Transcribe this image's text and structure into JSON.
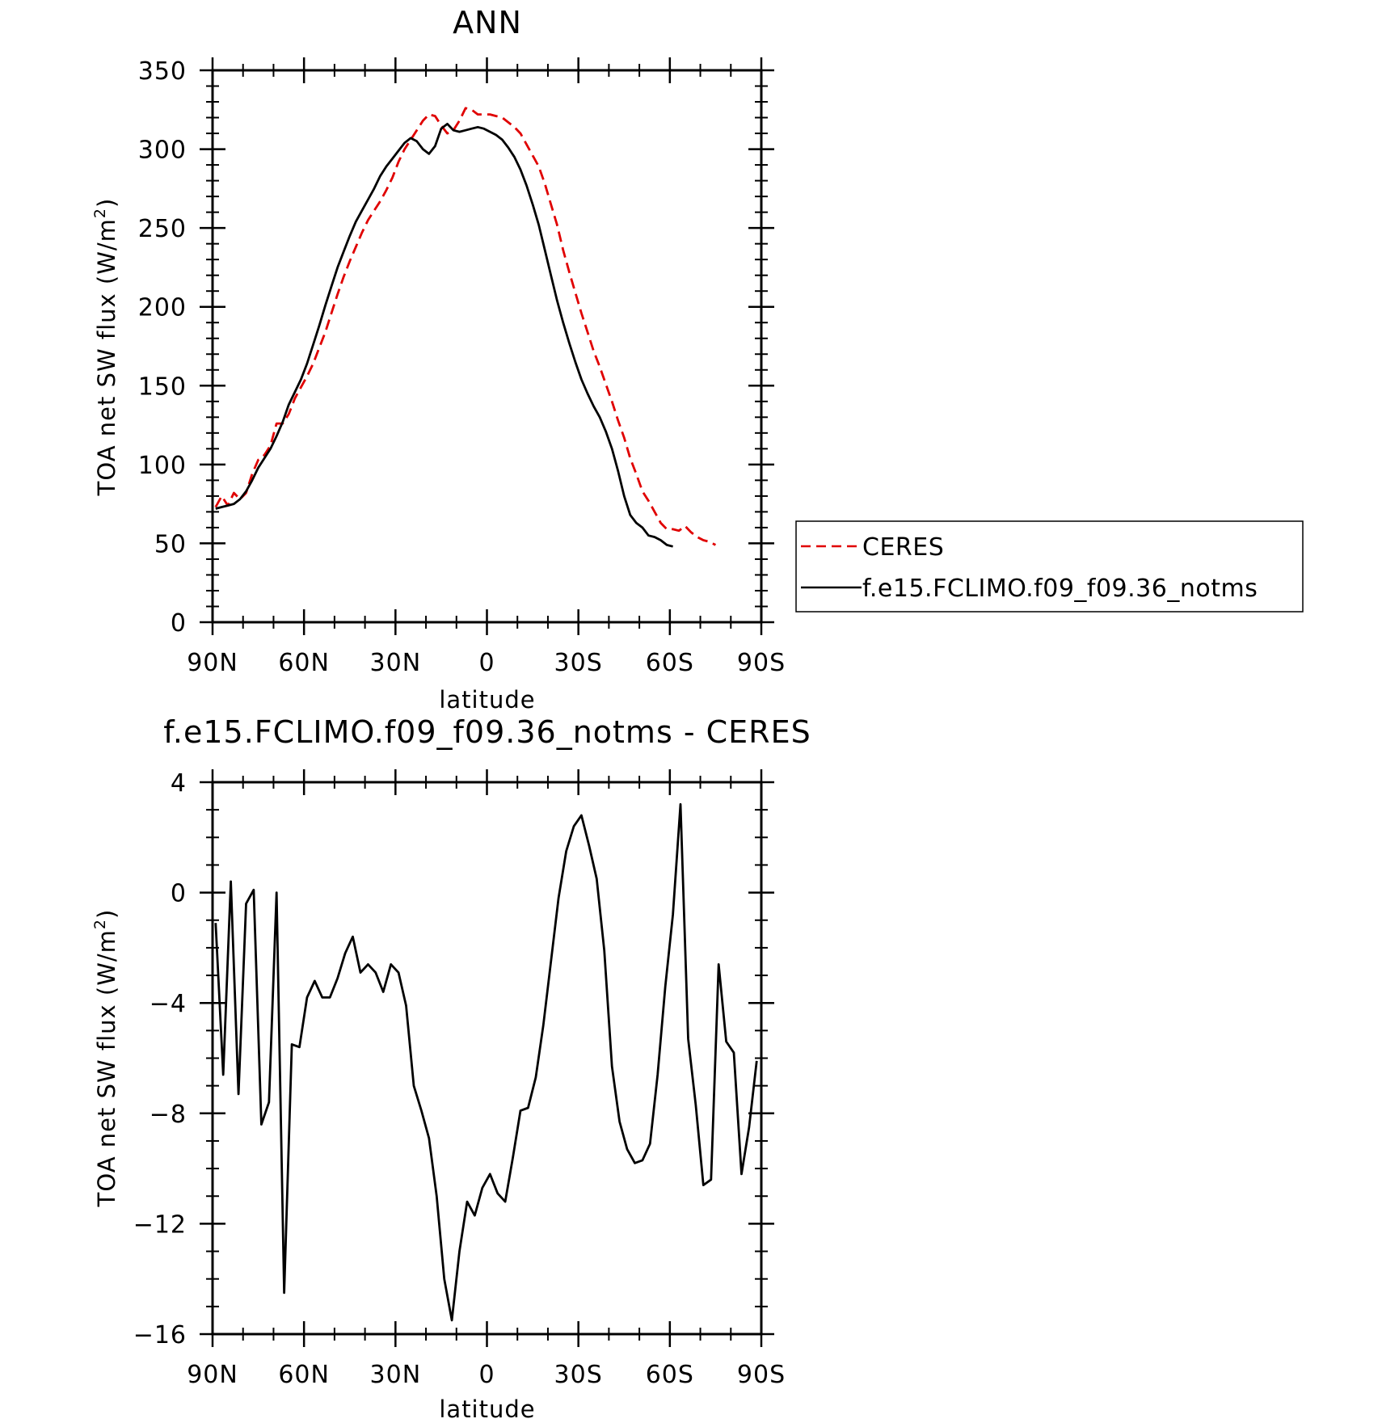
{
  "chart_data": [
    {
      "type": "line",
      "title": "ANN",
      "xlabel": "latitude",
      "ylabel": "TOA net SW flux (W/m²)",
      "ylabel_main": "TOA net SW flux (W/m",
      "ylabel_sup": "2",
      "ylabel_end": ")",
      "xlim": [
        90,
        -90
      ],
      "ylim": [
        0,
        350
      ],
      "x_ticks": [
        {
          "value": 90,
          "label": "90N"
        },
        {
          "value": 60,
          "label": "60N"
        },
        {
          "value": 30,
          "label": "30N"
        },
        {
          "value": 0,
          "label": "0"
        },
        {
          "value": -30,
          "label": "30S"
        },
        {
          "value": -60,
          "label": "60S"
        },
        {
          "value": -90,
          "label": "90S"
        }
      ],
      "y_ticks": [
        {
          "value": 0,
          "label": "0"
        },
        {
          "value": 50,
          "label": "50"
        },
        {
          "value": 100,
          "label": "100"
        },
        {
          "value": 150,
          "label": "150"
        },
        {
          "value": 200,
          "label": "200"
        },
        {
          "value": 250,
          "label": "250"
        },
        {
          "value": 300,
          "label": "300"
        },
        {
          "value": 350,
          "label": "350"
        }
      ],
      "grid": false,
      "legend_position": "right",
      "series": [
        {
          "name": "CERES",
          "color": "#e00000",
          "dashed": true,
          "points": [
            [
              89,
              73
            ],
            [
              87,
              80
            ],
            [
              85,
              74
            ],
            [
              83,
              82
            ],
            [
              81,
              78
            ],
            [
              79,
              82
            ],
            [
              77,
              94
            ],
            [
              75,
              103
            ],
            [
              73,
              106
            ],
            [
              71,
              112
            ],
            [
              69,
              126
            ],
            [
              67,
              126
            ],
            [
              65,
              132
            ],
            [
              63,
              142
            ],
            [
              61,
              149
            ],
            [
              59,
              156
            ],
            [
              57,
              164
            ],
            [
              55,
              174
            ],
            [
              53,
              184
            ],
            [
              51,
              196
            ],
            [
              49,
              208
            ],
            [
              47,
              219
            ],
            [
              45,
              229
            ],
            [
              43,
              238
            ],
            [
              41,
              247
            ],
            [
              39,
              255
            ],
            [
              37,
              261
            ],
            [
              35,
              267
            ],
            [
              33,
              274
            ],
            [
              31,
              282
            ],
            [
              29,
              292
            ],
            [
              27,
              300
            ],
            [
              25,
              306
            ],
            [
              23,
              312
            ],
            [
              21,
              318
            ],
            [
              19,
              322
            ],
            [
              17,
              321
            ],
            [
              15,
              315
            ],
            [
              13,
              310
            ],
            [
              11,
              312
            ],
            [
              9,
              318
            ],
            [
              7,
              326
            ],
            [
              5,
              325
            ],
            [
              3,
              322
            ],
            [
              1,
              322
            ],
            [
              -1,
              322
            ],
            [
              -3,
              321
            ],
            [
              -5,
              320
            ],
            [
              -7,
              317
            ],
            [
              -9,
              314
            ],
            [
              -11,
              310
            ],
            [
              -13,
              303
            ],
            [
              -15,
              296
            ],
            [
              -17,
              289
            ],
            [
              -19,
              278
            ],
            [
              -21,
              265
            ],
            [
              -23,
              252
            ],
            [
              -25,
              236
            ],
            [
              -27,
              222
            ],
            [
              -29,
              209
            ],
            [
              -31,
              196
            ],
            [
              -33,
              184
            ],
            [
              -35,
              172
            ],
            [
              -37,
              162
            ],
            [
              -39,
              151
            ],
            [
              -41,
              140
            ],
            [
              -43,
              128
            ],
            [
              -45,
              117
            ],
            [
              -47,
              104
            ],
            [
              -49,
              94
            ],
            [
              -51,
              83
            ],
            [
              -53,
              77
            ],
            [
              -55,
              70
            ],
            [
              -57,
              63
            ],
            [
              -59,
              59
            ],
            [
              -61,
              59
            ],
            [
              -63,
              58
            ],
            [
              -65,
              61
            ],
            [
              -67,
              57
            ],
            [
              -69,
              54
            ],
            [
              -71,
              52
            ],
            [
              -73,
              51
            ],
            [
              -75,
              49
            ]
          ]
        },
        {
          "name": "f.e15.FCLIMO.f09_f09.36_notms",
          "color": "#000000",
          "dashed": false,
          "points": [
            [
              89,
              72
            ],
            [
              87,
              73
            ],
            [
              85,
              74
            ],
            [
              83,
              75
            ],
            [
              81,
              78
            ],
            [
              79,
              83
            ],
            [
              77,
              90
            ],
            [
              75,
              98
            ],
            [
              73,
              104
            ],
            [
              71,
              110
            ],
            [
              69,
              118
            ],
            [
              67,
              127
            ],
            [
              65,
              138
            ],
            [
              63,
              146
            ],
            [
              61,
              154
            ],
            [
              59,
              164
            ],
            [
              57,
              176
            ],
            [
              55,
              188
            ],
            [
              53,
              201
            ],
            [
              51,
              213
            ],
            [
              49,
              225
            ],
            [
              47,
              235
            ],
            [
              45,
              245
            ],
            [
              43,
              254
            ],
            [
              41,
              261
            ],
            [
              39,
              268
            ],
            [
              37,
              275
            ],
            [
              35,
              283
            ],
            [
              33,
              289
            ],
            [
              31,
              294
            ],
            [
              29,
              299
            ],
            [
              27,
              304
            ],
            [
              25,
              307
            ],
            [
              23,
              305
            ],
            [
              21,
              300
            ],
            [
              19,
              297
            ],
            [
              17,
              302
            ],
            [
              15,
              313
            ],
            [
              13,
              316
            ],
            [
              11,
              312
            ],
            [
              9,
              311
            ],
            [
              7,
              312
            ],
            [
              5,
              313
            ],
            [
              3,
              314
            ],
            [
              1,
              313
            ],
            [
              -1,
              311
            ],
            [
              -3,
              309
            ],
            [
              -5,
              306
            ],
            [
              -7,
              301
            ],
            [
              -9,
              295
            ],
            [
              -11,
              287
            ],
            [
              -13,
              277
            ],
            [
              -15,
              265
            ],
            [
              -17,
              252
            ],
            [
              -19,
              236
            ],
            [
              -21,
              220
            ],
            [
              -23,
              204
            ],
            [
              -25,
              190
            ],
            [
              -27,
              177
            ],
            [
              -29,
              165
            ],
            [
              -31,
              154
            ],
            [
              -33,
              145
            ],
            [
              -35,
              137
            ],
            [
              -37,
              130
            ],
            [
              -39,
              121
            ],
            [
              -41,
              110
            ],
            [
              -43,
              96
            ],
            [
              -45,
              80
            ],
            [
              -47,
              68
            ],
            [
              -49,
              63
            ],
            [
              -51,
              60
            ],
            [
              -53,
              55
            ],
            [
              -55,
              54
            ],
            [
              -57,
              52
            ],
            [
              -59,
              49
            ],
            [
              -61,
              48
            ]
          ]
        }
      ]
    },
    {
      "type": "line",
      "title": "f.e15.FCLIMO.f09_f09.36_notms - CERES",
      "xlabel": "latitude",
      "ylabel": "TOA net SW flux (W/m²)",
      "ylabel_main": "TOA net SW flux (W/m",
      "ylabel_sup": "2",
      "ylabel_end": ")",
      "xlim": [
        90,
        -90
      ],
      "ylim": [
        -16,
        4
      ],
      "x_ticks": [
        {
          "value": 90,
          "label": "90N"
        },
        {
          "value": 60,
          "label": "60N"
        },
        {
          "value": 30,
          "label": "30N"
        },
        {
          "value": 0,
          "label": "0"
        },
        {
          "value": -30,
          "label": "30S"
        },
        {
          "value": -60,
          "label": "60S"
        },
        {
          "value": -90,
          "label": "90S"
        }
      ],
      "y_ticks": [
        {
          "value": -16,
          "label": "−16"
        },
        {
          "value": -12,
          "label": "−12"
        },
        {
          "value": -8,
          "label": "−8"
        },
        {
          "value": -4,
          "label": "−4"
        },
        {
          "value": 0,
          "label": "0"
        },
        {
          "value": 4,
          "label": "4"
        }
      ],
      "grid": false,
      "series": [
        {
          "color": "#000000",
          "dashed": false,
          "points": [
            [
              89,
              -1.1
            ],
            [
              86.5,
              -6.6
            ],
            [
              84,
              0.4
            ],
            [
              81.5,
              -7.3
            ],
            [
              79,
              -0.4
            ],
            [
              76.5,
              0.1
            ],
            [
              74,
              -8.4
            ],
            [
              71.5,
              -7.6
            ],
            [
              69,
              0
            ],
            [
              66.5,
              -14.5
            ],
            [
              64,
              -5.5
            ],
            [
              61.5,
              -5.6
            ],
            [
              59,
              -3.8
            ],
            [
              56.5,
              -3.2
            ],
            [
              54,
              -3.8
            ],
            [
              51.5,
              -3.8
            ],
            [
              49,
              -3.1
            ],
            [
              46.5,
              -2.2
            ],
            [
              44,
              -1.6
            ],
            [
              41.5,
              -2.9
            ],
            [
              39,
              -2.6
            ],
            [
              36.5,
              -2.9
            ],
            [
              34,
              -3.6
            ],
            [
              31.5,
              -2.6
            ],
            [
              29,
              -2.9
            ],
            [
              26.5,
              -4.1
            ],
            [
              24,
              -7.0
            ],
            [
              21.5,
              -7.9
            ],
            [
              19,
              -8.9
            ],
            [
              16.5,
              -11.0
            ],
            [
              14,
              -14.0
            ],
            [
              11.5,
              -15.5
            ],
            [
              9,
              -13.0
            ],
            [
              6.5,
              -11.2
            ],
            [
              4,
              -11.7
            ],
            [
              1.5,
              -10.7
            ],
            [
              -1,
              -10.2
            ],
            [
              -3.5,
              -10.9
            ],
            [
              -6,
              -11.2
            ],
            [
              -8.5,
              -9.6
            ],
            [
              -11,
              -7.9
            ],
            [
              -13.5,
              -7.8
            ],
            [
              -16,
              -6.7
            ],
            [
              -18.5,
              -4.8
            ],
            [
              -21,
              -2.5
            ],
            [
              -23.5,
              -0.2
            ],
            [
              -26,
              1.5
            ],
            [
              -28.5,
              2.4
            ],
            [
              -31,
              2.8
            ],
            [
              -33.5,
              1.7
            ],
            [
              -36,
              0.5
            ],
            [
              -38.5,
              -2.1
            ],
            [
              -41,
              -6.3
            ],
            [
              -43.5,
              -8.3
            ],
            [
              -46,
              -9.3
            ],
            [
              -48.5,
              -9.8
            ],
            [
              -51,
              -9.7
            ],
            [
              -53.5,
              -9.1
            ],
            [
              -56,
              -6.6
            ],
            [
              -58.5,
              -3.4
            ],
            [
              -61,
              -0.8
            ],
            [
              -63.5,
              3.2
            ],
            [
              -66,
              -5.3
            ],
            [
              -68.5,
              -7.7
            ],
            [
              -71,
              -10.6
            ],
            [
              -73.5,
              -10.4
            ],
            [
              -76,
              -2.6
            ],
            [
              -78.5,
              -5.4
            ],
            [
              -81,
              -5.8
            ],
            [
              -83.5,
              -10.2
            ],
            [
              -86,
              -8.5
            ],
            [
              -88.5,
              -6.1
            ]
          ]
        }
      ]
    }
  ]
}
